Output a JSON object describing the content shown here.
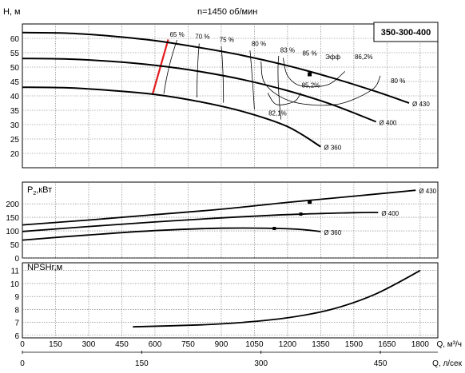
{
  "chart_data": [
    {
      "id": "head",
      "type": "line",
      "title": "n=1450 об/мин",
      "ylabel": "H, м",
      "model": "350-300-400",
      "ylim": [
        15,
        65
      ],
      "yticks": [
        20,
        25,
        30,
        35,
        40,
        45,
        50,
        55,
        60
      ],
      "series": [
        {
          "name": "Ø 430",
          "x": [
            0,
            200,
            400,
            600,
            800,
            1000,
            1200,
            1400,
            1600,
            1750
          ],
          "y": [
            62,
            61.8,
            60.8,
            59.2,
            56.8,
            54,
            50.5,
            46.3,
            41.5,
            37.5
          ]
        },
        {
          "name": "Ø 400",
          "x": [
            0,
            200,
            400,
            600,
            800,
            1000,
            1200,
            1400,
            1600
          ],
          "y": [
            53,
            52.8,
            52,
            50.6,
            48.5,
            45.6,
            41.8,
            37,
            31
          ]
        },
        {
          "name": "Ø 360",
          "x": [
            0,
            200,
            400,
            600,
            800,
            1000,
            1200,
            1350
          ],
          "y": [
            43,
            42.8,
            41.9,
            40.5,
            38,
            34.5,
            29.3,
            22.3
          ]
        }
      ],
      "efficiency_labels": [
        "65 %",
        "70 %",
        "75 %",
        "80 %",
        "83 %",
        "85 %",
        "Эфф",
        "86,2%",
        "85,2%",
        "80 %",
        "82,1%"
      ],
      "operating_point": {
        "x": 1300,
        "y": 47.5
      }
    },
    {
      "id": "power",
      "type": "line",
      "ylabel": "P",
      "ylabel_sub": "2",
      "ylabel_unit": ",кВт",
      "ylim": [
        0,
        280
      ],
      "yticks": [
        0,
        50,
        100,
        150,
        200
      ],
      "series": [
        {
          "name": "Ø 430",
          "x": [
            0,
            300,
            600,
            900,
            1200,
            1500,
            1780
          ],
          "y": [
            122,
            140,
            160,
            180,
            205,
            228,
            250
          ]
        },
        {
          "name": "Ø 400",
          "x": [
            0,
            300,
            600,
            900,
            1200,
            1500,
            1610
          ],
          "y": [
            98,
            116,
            133,
            148,
            160,
            167,
            168
          ]
        },
        {
          "name": "Ø 360",
          "x": [
            0,
            300,
            600,
            900,
            1200,
            1350
          ],
          "y": [
            66,
            85,
            101,
            110,
            108,
            98
          ]
        }
      ]
    },
    {
      "id": "npsh",
      "type": "line",
      "ylabel": "NPSHr,м",
      "ylim": [
        5.8,
        11.6
      ],
      "yticks": [
        6,
        7,
        8,
        9,
        10,
        11
      ],
      "series": [
        {
          "name": "NPSHr",
          "x": [
            500,
            800,
            1000,
            1200,
            1400,
            1600,
            1800
          ],
          "y": [
            6.65,
            6.8,
            7.0,
            7.35,
            8.0,
            9.2,
            11.0
          ]
        }
      ]
    }
  ],
  "xaxis_m3h": {
    "label": "Q, м³/ч",
    "ticks": [
      0,
      150,
      300,
      450,
      600,
      750,
      900,
      1050,
      1200,
      1350,
      1500,
      1650,
      1800
    ]
  },
  "xaxis_ls": {
    "label": "Q, л/сек",
    "ticks": [
      0,
      150,
      300,
      450
    ]
  }
}
